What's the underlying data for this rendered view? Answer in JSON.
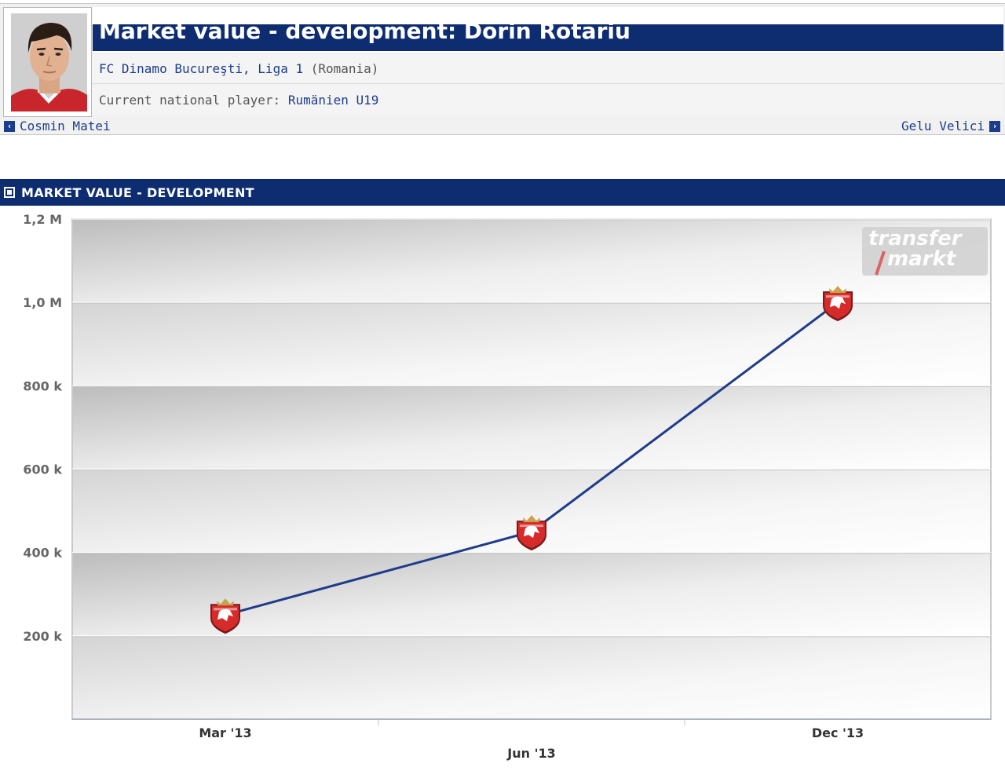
{
  "header": {
    "title": "Market value - development: Dorin Rotariu",
    "club_link": "FC Dinamo Bucureşti",
    "league_link": "Liga 1",
    "country": "(Romania)",
    "national_label": "Current national player:",
    "national_link": "Rumänien U19"
  },
  "nav": {
    "prev_player": "Cosmin Matei",
    "next_player": "Gelu Velici"
  },
  "section": {
    "title": "MARKET VALUE - DEVELOPMENT"
  },
  "watermark": {
    "line1": "transfer",
    "line2": "markt"
  },
  "colors": {
    "brand": "#0e2d71",
    "line": "#1f3b8a",
    "crest": "#d72b2b"
  },
  "chart_data": {
    "type": "line",
    "title": "",
    "xlabel": "",
    "ylabel": "",
    "ylim": [
      0,
      1200000
    ],
    "y_ticks": [
      {
        "value": 200000,
        "label": "200 k"
      },
      {
        "value": 400000,
        "label": "400 k"
      },
      {
        "value": 600000,
        "label": "600 k"
      },
      {
        "value": 800000,
        "label": "800 k"
      },
      {
        "value": 1000000,
        "label": "1,0 M"
      },
      {
        "value": 1200000,
        "label": "1,2 M"
      }
    ],
    "grid": true,
    "legend": "none",
    "marker": "club-crest",
    "points": [
      {
        "x": "Mar '13",
        "y": 250000
      },
      {
        "x": "Jun '13",
        "y": 450000
      },
      {
        "x": "Dec '13",
        "y": 1000000
      }
    ]
  }
}
